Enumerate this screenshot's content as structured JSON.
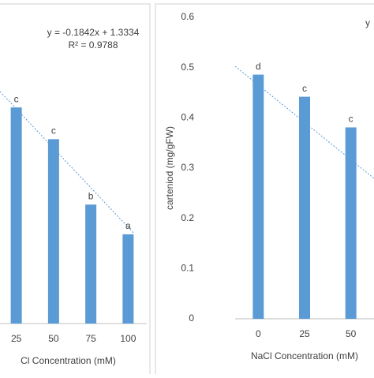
{
  "chart_data": [
    {
      "type": "bar",
      "categories": [
        "25",
        "50",
        "75",
        "100"
      ],
      "values": [
        1.09,
        0.93,
        0.6,
        0.45
      ],
      "value_labels": [
        "c",
        "c",
        "b",
        "a"
      ],
      "color": "#5b9bd5",
      "ylim": [
        0,
        1.6
      ],
      "xlabel": "Cl Concentration (mM)",
      "annotations": [
        "y = -0.1842x + 1.3334",
        "R² = 0.9788"
      ]
    },
    {
      "type": "bar",
      "categories": [
        "0",
        "25",
        "50"
      ],
      "values": [
        0.486,
        0.442,
        0.381
      ],
      "value_labels": [
        "d",
        "c",
        "c"
      ],
      "color": "#5b9bd5",
      "ylim": [
        0,
        0.6
      ],
      "yticks": [
        0,
        0.1,
        0.2,
        0.3,
        0.4,
        0.5,
        0.6
      ],
      "xlabel": "NaCl Concentration (mM)",
      "ylabel": "carteniod  (mg/gFW)",
      "annotations": [
        "y"
      ]
    }
  ]
}
